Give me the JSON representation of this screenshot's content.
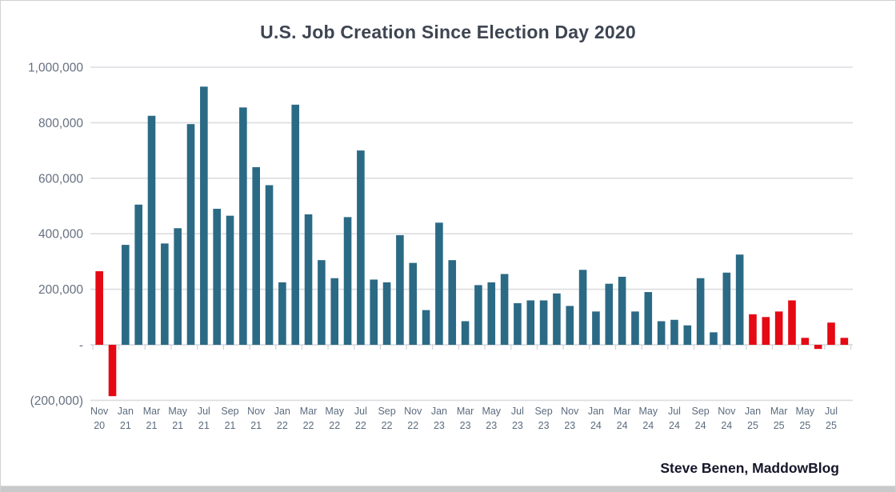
{
  "page": {
    "background_color": "#ffffff",
    "bottom_edge_color": "#c7c9cb"
  },
  "footer": {
    "credit": "Steve Benen, MaddowBlog"
  },
  "chart_data": {
    "type": "bar",
    "title": "U.S. Job Creation Since Election Day 2020",
    "xlabel": "",
    "ylabel": "",
    "ylim": [
      -200000,
      1000000
    ],
    "gridline_step": 200000,
    "grid": "horizontal",
    "legend_position": "none",
    "x_label_every": 2,
    "colors": {
      "teal_bar": "#2b6a85",
      "red_bar": "#e50914",
      "gridline": "#dcdde0",
      "axis_line": "#d3d5da",
      "y_tick_label": "#667080",
      "x_tick_label": "#5c6b7e",
      "title_text": "#3e4552",
      "credit_text": "#16162a"
    },
    "y_ticks": [
      {
        "value": 1000000,
        "label": "1,000,000"
      },
      {
        "value": 800000,
        "label": "800,000"
      },
      {
        "value": 600000,
        "label": "600,000"
      },
      {
        "value": 400000,
        "label": "400,000"
      },
      {
        "value": 200000,
        "label": "200,000"
      },
      {
        "value": 0,
        "label": "-"
      },
      {
        "value": -200000,
        "label": "(200,000)"
      }
    ],
    "points": [
      {
        "month": "Nov",
        "year": "20",
        "value": 265000,
        "color": "red_bar"
      },
      {
        "month": "Dec",
        "year": "20",
        "value": -185000,
        "color": "red_bar"
      },
      {
        "month": "Jan",
        "year": "21",
        "value": 360000,
        "color": "teal_bar"
      },
      {
        "month": "Feb",
        "year": "21",
        "value": 505000,
        "color": "teal_bar"
      },
      {
        "month": "Mar",
        "year": "21",
        "value": 825000,
        "color": "teal_bar"
      },
      {
        "month": "Apr",
        "year": "21",
        "value": 365000,
        "color": "teal_bar"
      },
      {
        "month": "May",
        "year": "21",
        "value": 420000,
        "color": "teal_bar"
      },
      {
        "month": "Jun",
        "year": "21",
        "value": 795000,
        "color": "teal_bar"
      },
      {
        "month": "Jul",
        "year": "21",
        "value": 930000,
        "color": "teal_bar"
      },
      {
        "month": "Aug",
        "year": "21",
        "value": 490000,
        "color": "teal_bar"
      },
      {
        "month": "Sep",
        "year": "21",
        "value": 465000,
        "color": "teal_bar"
      },
      {
        "month": "Oct",
        "year": "21",
        "value": 855000,
        "color": "teal_bar"
      },
      {
        "month": "Nov",
        "year": "21",
        "value": 640000,
        "color": "teal_bar"
      },
      {
        "month": "Dec",
        "year": "21",
        "value": 575000,
        "color": "teal_bar"
      },
      {
        "month": "Jan",
        "year": "22",
        "value": 225000,
        "color": "teal_bar"
      },
      {
        "month": "Feb",
        "year": "22",
        "value": 865000,
        "color": "teal_bar"
      },
      {
        "month": "Mar",
        "year": "22",
        "value": 470000,
        "color": "teal_bar"
      },
      {
        "month": "Apr",
        "year": "22",
        "value": 305000,
        "color": "teal_bar"
      },
      {
        "month": "May",
        "year": "22",
        "value": 240000,
        "color": "teal_bar"
      },
      {
        "month": "Jun",
        "year": "22",
        "value": 460000,
        "color": "teal_bar"
      },
      {
        "month": "Jul",
        "year": "22",
        "value": 700000,
        "color": "teal_bar"
      },
      {
        "month": "Aug",
        "year": "22",
        "value": 235000,
        "color": "teal_bar"
      },
      {
        "month": "Sep",
        "year": "22",
        "value": 225000,
        "color": "teal_bar"
      },
      {
        "month": "Oct",
        "year": "22",
        "value": 395000,
        "color": "teal_bar"
      },
      {
        "month": "Nov",
        "year": "22",
        "value": 295000,
        "color": "teal_bar"
      },
      {
        "month": "Dec",
        "year": "22",
        "value": 125000,
        "color": "teal_bar"
      },
      {
        "month": "Jan",
        "year": "23",
        "value": 440000,
        "color": "teal_bar"
      },
      {
        "month": "Feb",
        "year": "23",
        "value": 305000,
        "color": "teal_bar"
      },
      {
        "month": "Mar",
        "year": "23",
        "value": 85000,
        "color": "teal_bar"
      },
      {
        "month": "Apr",
        "year": "23",
        "value": 215000,
        "color": "teal_bar"
      },
      {
        "month": "May",
        "year": "23",
        "value": 225000,
        "color": "teal_bar"
      },
      {
        "month": "Jun",
        "year": "23",
        "value": 255000,
        "color": "teal_bar"
      },
      {
        "month": "Jul",
        "year": "23",
        "value": 150000,
        "color": "teal_bar"
      },
      {
        "month": "Aug",
        "year": "23",
        "value": 160000,
        "color": "teal_bar"
      },
      {
        "month": "Sep",
        "year": "23",
        "value": 160000,
        "color": "teal_bar"
      },
      {
        "month": "Oct",
        "year": "23",
        "value": 185000,
        "color": "teal_bar"
      },
      {
        "month": "Nov",
        "year": "23",
        "value": 140000,
        "color": "teal_bar"
      },
      {
        "month": "Dec",
        "year": "23",
        "value": 270000,
        "color": "teal_bar"
      },
      {
        "month": "Jan",
        "year": "24",
        "value": 120000,
        "color": "teal_bar"
      },
      {
        "month": "Feb",
        "year": "24",
        "value": 220000,
        "color": "teal_bar"
      },
      {
        "month": "Mar",
        "year": "24",
        "value": 245000,
        "color": "teal_bar"
      },
      {
        "month": "Apr",
        "year": "24",
        "value": 120000,
        "color": "teal_bar"
      },
      {
        "month": "May",
        "year": "24",
        "value": 190000,
        "color": "teal_bar"
      },
      {
        "month": "Jun",
        "year": "24",
        "value": 85000,
        "color": "teal_bar"
      },
      {
        "month": "Jul",
        "year": "24",
        "value": 90000,
        "color": "teal_bar"
      },
      {
        "month": "Aug",
        "year": "24",
        "value": 70000,
        "color": "teal_bar"
      },
      {
        "month": "Sep",
        "year": "24",
        "value": 240000,
        "color": "teal_bar"
      },
      {
        "month": "Oct",
        "year": "24",
        "value": 45000,
        "color": "teal_bar"
      },
      {
        "month": "Nov",
        "year": "24",
        "value": 260000,
        "color": "teal_bar"
      },
      {
        "month": "Dec",
        "year": "24",
        "value": 325000,
        "color": "teal_bar"
      },
      {
        "month": "Jan",
        "year": "25",
        "value": 110000,
        "color": "red_bar"
      },
      {
        "month": "Feb",
        "year": "25",
        "value": 100000,
        "color": "red_bar"
      },
      {
        "month": "Mar",
        "year": "25",
        "value": 120000,
        "color": "red_bar"
      },
      {
        "month": "Apr",
        "year": "25",
        "value": 160000,
        "color": "red_bar"
      },
      {
        "month": "May",
        "year": "25",
        "value": 25000,
        "color": "red_bar"
      },
      {
        "month": "Jun",
        "year": "25",
        "value": -15000,
        "color": "red_bar"
      },
      {
        "month": "Jul",
        "year": "25",
        "value": 80000,
        "color": "red_bar"
      },
      {
        "month": "Aug",
        "year": "25",
        "value": 25000,
        "color": "red_bar"
      }
    ]
  }
}
